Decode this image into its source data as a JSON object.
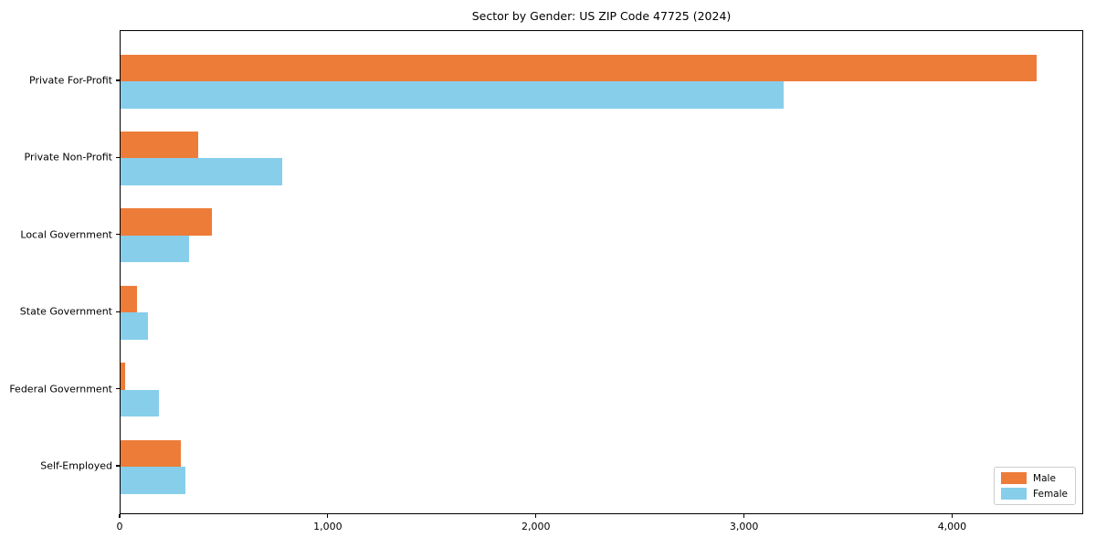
{
  "chart_data": {
    "type": "bar",
    "orientation": "horizontal",
    "title": "Sector by Gender: US ZIP Code 47725 (2024)",
    "categories": [
      "Private For-Profit",
      "Private Non-Profit",
      "Local Government",
      "State Government",
      "Federal Government",
      "Self-Employed"
    ],
    "series": [
      {
        "name": "Male",
        "color": "#ED7C39",
        "values": [
          4400,
          375,
          440,
          80,
          22,
          290
        ]
      },
      {
        "name": "Female",
        "color": "#87CEEB",
        "values": [
          3185,
          775,
          330,
          130,
          185,
          310
        ]
      }
    ],
    "xlabel": "",
    "ylabel": "",
    "xlim": [
      0,
      4630
    ],
    "xticks": [
      0,
      1000,
      2000,
      3000,
      4000
    ],
    "xticklabels": [
      "0",
      "1,000",
      "2,000",
      "3,000",
      "4,000"
    ],
    "grid": false,
    "legend": {
      "position": "lower right"
    }
  }
}
